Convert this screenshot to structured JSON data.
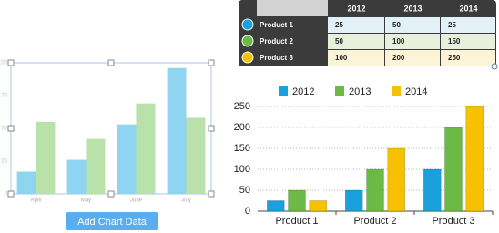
{
  "chart_data": [
    {
      "type": "bar",
      "categories": [
        "April",
        "May",
        "June",
        "July"
      ],
      "series": [
        {
          "color": "#8fd4f0",
          "values": [
            17,
            26,
            53,
            96
          ]
        },
        {
          "color": "#b8e2a9",
          "values": [
            55,
            42,
            69,
            58
          ]
        }
      ],
      "ylim": [
        0,
        100
      ],
      "yticks": [
        0,
        25,
        50,
        75,
        100
      ],
      "grid": false
    },
    {
      "type": "bar",
      "categories": [
        "Product 1",
        "Product 2",
        "Product 3"
      ],
      "series": [
        {
          "name": "2012",
          "color": "#1aa0dc",
          "values": [
            25,
            50,
            100
          ]
        },
        {
          "name": "2013",
          "color": "#6cba45",
          "values": [
            50,
            100,
            200
          ]
        },
        {
          "name": "2014",
          "color": "#f6c100",
          "values": [
            25,
            150,
            250
          ]
        }
      ],
      "ylim": [
        0,
        250
      ],
      "yticks": [
        0,
        50,
        100,
        150,
        200,
        250
      ],
      "grid": true,
      "legend": "top"
    }
  ],
  "button": {
    "label": "Add Chart Data"
  },
  "table": {
    "header": [
      "2012",
      "2013",
      "2014"
    ],
    "rows": [
      {
        "label": "Product 1",
        "color": "#1aa0dc",
        "fill": "#e2f1f8",
        "cells": [
          "25",
          "50",
          "25"
        ]
      },
      {
        "label": "Product 2",
        "color": "#6cba45",
        "fill": "#e5f1dc",
        "cells": [
          "50",
          "100",
          "150"
        ]
      },
      {
        "label": "Product 3",
        "color": "#f6c100",
        "fill": "#fcf4d6",
        "cells": [
          "100",
          "200",
          "250"
        ]
      }
    ]
  }
}
